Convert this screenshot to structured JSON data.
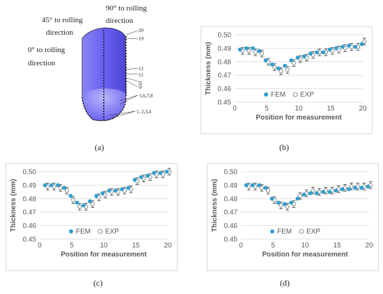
{
  "diagram": {
    "label_45": "45°  to  rolling",
    "label_45_line2": "direction",
    "label_0": "0° to rolling",
    "label_0_line2": "direction",
    "label_90": "90°  to  rolling",
    "label_90_line2": "direction",
    "positions": [
      "20",
      "19",
      "12",
      "11",
      "10",
      "9",
      "5,6,7,8",
      "1, 2,3,4"
    ],
    "cup_color": "#6b63f0"
  },
  "captions": {
    "a": "(a)",
    "b": "(b)",
    "c": "(c)",
    "d": "(d)"
  },
  "legend": {
    "fem": "FEM",
    "exp": "EXP"
  },
  "colors": {
    "fem": "#2e9fd1",
    "exp_stroke": "#8c8c8c",
    "grid": "#d9d9d9",
    "errbar": "#404040"
  },
  "chart_data": [
    {
      "id": "b",
      "type": "scatter",
      "xlabel": "Position for measurement",
      "ylabel": "Thickness (mm)",
      "xlim": [
        0,
        20
      ],
      "ylim": [
        0.45,
        0.5
      ],
      "xticks": [
        0,
        5,
        10,
        15,
        20
      ],
      "yticks": [
        "0.45",
        "0.46",
        "0.47",
        "0.48",
        "0.49",
        "0.50"
      ],
      "x": [
        1,
        2,
        3,
        4,
        5,
        6,
        7,
        8,
        9,
        10,
        11,
        12,
        13,
        14,
        15,
        16,
        17,
        18,
        19,
        20
      ],
      "series": [
        {
          "name": "FEM",
          "values": [
            0.489,
            0.49,
            0.49,
            0.488,
            0.481,
            0.478,
            0.475,
            0.477,
            0.481,
            0.483,
            0.484,
            0.486,
            0.487,
            0.487,
            0.489,
            0.49,
            0.491,
            0.492,
            0.491,
            0.493
          ]
        },
        {
          "name": "EXP",
          "values": [
            0.488,
            0.488,
            0.487,
            0.486,
            0.48,
            0.476,
            0.473,
            0.474,
            0.479,
            0.482,
            0.483,
            0.485,
            0.487,
            0.487,
            0.488,
            0.489,
            0.49,
            0.491,
            0.491,
            0.495
          ],
          "error": 0.0025
        }
      ]
    },
    {
      "id": "c",
      "type": "scatter",
      "xlabel": "Position for measurement",
      "ylabel": "Thickness (mm)",
      "xlim": [
        0,
        20
      ],
      "ylim": [
        0.45,
        0.5
      ],
      "xticks": [
        0,
        5,
        10,
        15,
        20
      ],
      "yticks": [
        "0.45",
        "0.46",
        "0.47",
        "0.48",
        "0.49",
        "0.50"
      ],
      "x": [
        1,
        2,
        3,
        4,
        5,
        6,
        7,
        8,
        9,
        10,
        11,
        12,
        13,
        14,
        15,
        16,
        17,
        18,
        19,
        20
      ],
      "series": [
        {
          "name": "FEM",
          "values": [
            0.49,
            0.49,
            0.49,
            0.488,
            0.482,
            0.477,
            0.475,
            0.478,
            0.482,
            0.484,
            0.486,
            0.486,
            0.487,
            0.488,
            0.494,
            0.496,
            0.497,
            0.499,
            0.499,
            0.5
          ]
        },
        {
          "name": "EXP",
          "values": [
            0.489,
            0.489,
            0.488,
            0.486,
            0.479,
            0.474,
            0.474,
            0.476,
            0.481,
            0.483,
            0.485,
            0.485,
            0.486,
            0.487,
            0.493,
            0.495,
            0.496,
            0.498,
            0.498,
            0.5
          ],
          "error": 0.0025
        }
      ]
    },
    {
      "id": "d",
      "type": "scatter",
      "xlabel": "Position for measurement",
      "ylabel": "Thickness (mm)",
      "xlim": [
        0,
        20
      ],
      "ylim": [
        0.45,
        0.5
      ],
      "xticks": [
        0,
        5,
        10,
        15,
        20
      ],
      "yticks": [
        "0.45",
        "0.46",
        "0.47",
        "0.48",
        "0.49",
        "0.50"
      ],
      "x": [
        1,
        2,
        3,
        4,
        5,
        6,
        7,
        8,
        9,
        10,
        11,
        12,
        13,
        14,
        15,
        16,
        17,
        18,
        19,
        20
      ],
      "series": [
        {
          "name": "FEM",
          "values": [
            0.49,
            0.49,
            0.49,
            0.488,
            0.48,
            0.477,
            0.476,
            0.477,
            0.48,
            0.483,
            0.484,
            0.484,
            0.485,
            0.485,
            0.486,
            0.487,
            0.487,
            0.488,
            0.488,
            0.489
          ]
        },
        {
          "name": "EXP",
          "values": [
            0.489,
            0.489,
            0.488,
            0.486,
            0.479,
            0.475,
            0.474,
            0.476,
            0.482,
            0.484,
            0.486,
            0.485,
            0.486,
            0.486,
            0.487,
            0.488,
            0.489,
            0.489,
            0.489,
            0.49
          ],
          "error": 0.0025
        }
      ]
    }
  ]
}
